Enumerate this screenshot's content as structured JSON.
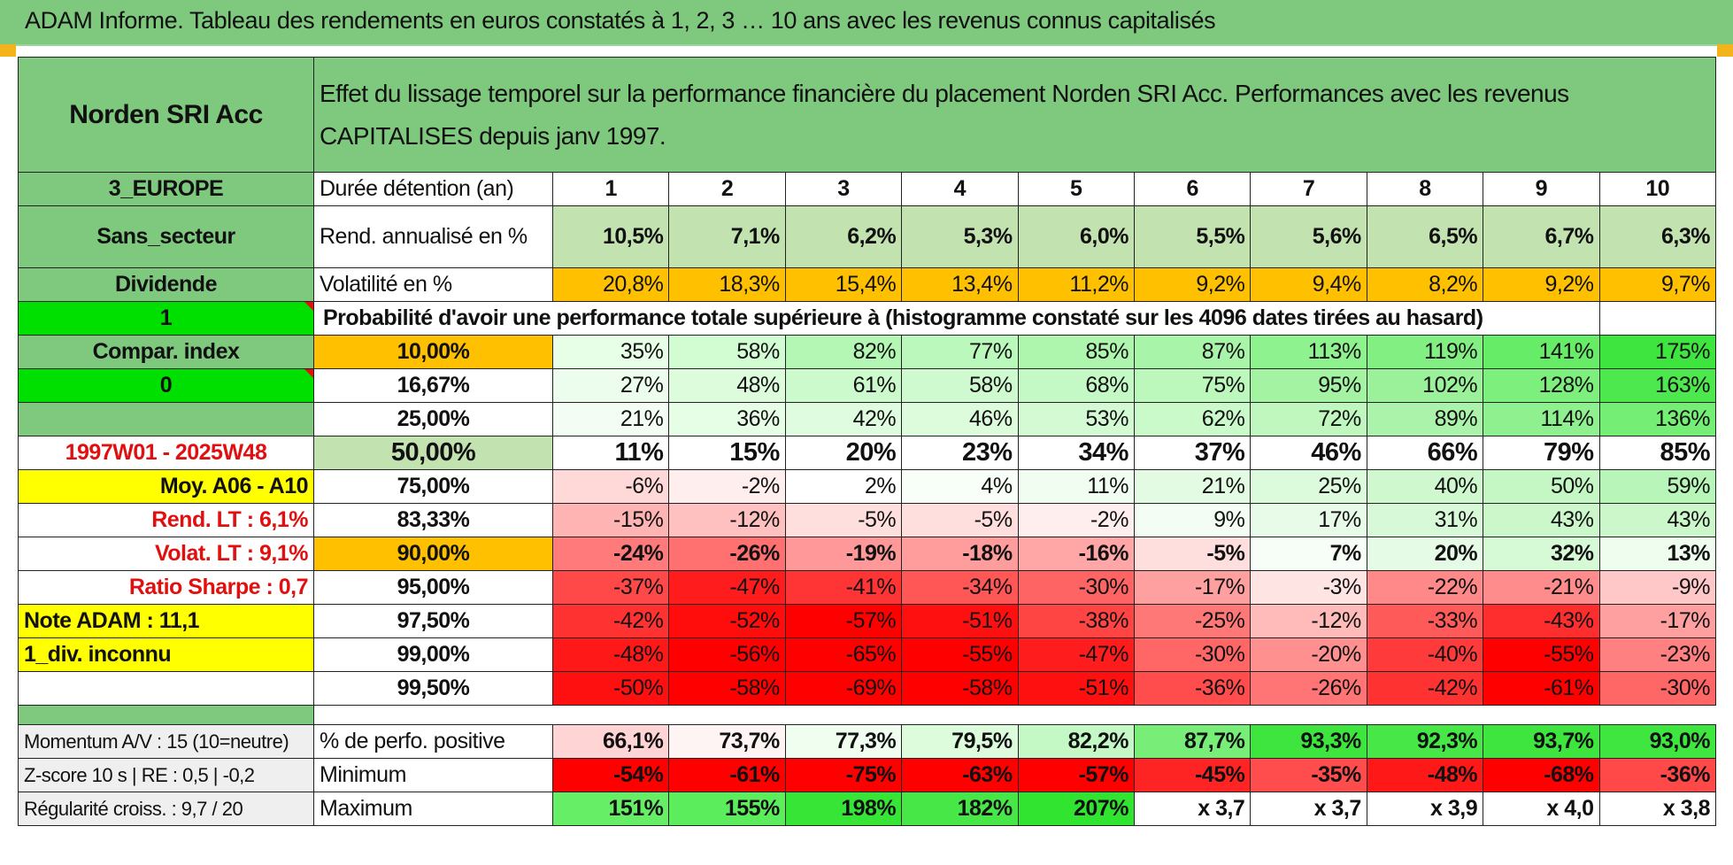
{
  "title": "ADAM Informe. Tableau des rendements en euros constatés à 1, 2, 3 … 10 ans avec les revenus connus capitalisés",
  "fund_name": "Norden SRI Acc",
  "header_text": "Effet du lissage temporel sur la performance financière du placement Norden SRI Acc. Performances avec les revenus CAPITALISES depuis janv 1997.",
  "left_panel": {
    "zone": "3_EUROPE",
    "secteur": "Sans_secteur",
    "dividende": "Dividende",
    "dividende_val": "1",
    "compar_index": "Compar. index",
    "compar_val": "0",
    "period": "1997W01 - 2025W48",
    "moy": "Moy. A06 - A10",
    "rend_lt": "Rend. LT :   6,1%",
    "volat_lt": "Volat. LT :   9,1%",
    "sharpe": "Ratio Sharpe :    0,7",
    "note": "Note ADAM : 11,1",
    "div_inconnu": "1_div. inconnu",
    "momentum": "Momentum A/V : 15 (10=neutre)",
    "zscore": "Z-score 10 s | RE : 0,5 | -0,2",
    "regularite": "Régularité croiss. : 9,7 / 20"
  },
  "labels": {
    "duree": "Durée détention (an)",
    "rend": "Rend. annualisé en %",
    "vol": "Volatilité en %",
    "proba": "Probabilité d'avoir une performance totale supérieure à (histogramme constaté sur les 4096 dates tirées au hasard)",
    "pos": "% de perfo. positive",
    "min": "Minimum",
    "max": "Maximum"
  },
  "years": [
    "1",
    "2",
    "3",
    "4",
    "5",
    "6",
    "7",
    "8",
    "9",
    "10"
  ],
  "rend": [
    "10,5%",
    "7,1%",
    "6,2%",
    "5,3%",
    "6,0%",
    "5,5%",
    "5,6%",
    "6,5%",
    "6,7%",
    "6,3%"
  ],
  "vol": [
    "20,8%",
    "18,3%",
    "15,4%",
    "13,4%",
    "11,2%",
    "9,2%",
    "9,4%",
    "8,2%",
    "9,2%",
    "9,7%"
  ],
  "quantiles": [
    {
      "q": "10,00%",
      "vals": [
        "35%",
        "58%",
        "82%",
        "77%",
        "85%",
        "87%",
        "113%",
        "119%",
        "141%",
        "175%"
      ],
      "colors": [
        "#e6ffe6",
        "#d2fcd2",
        "#b4f7b4",
        "#bbf8bb",
        "#aef5ae",
        "#a8f4a8",
        "#8ef28e",
        "#82ef82",
        "#66ec66",
        "#3ee53e"
      ]
    },
    {
      "q": "16,67%",
      "vals": [
        "27%",
        "48%",
        "61%",
        "58%",
        "68%",
        "75%",
        "95%",
        "102%",
        "128%",
        "163%"
      ],
      "colors": [
        "#edfded",
        "#dcfcdc",
        "#ccfacc",
        "#cffacf",
        "#c4f8c4",
        "#bcf8bc",
        "#a3f3a3",
        "#9af19a",
        "#7def7d",
        "#4de84d"
      ]
    },
    {
      "q": "25,00%",
      "vals": [
        "21%",
        "36%",
        "42%",
        "46%",
        "53%",
        "62%",
        "72%",
        "89%",
        "114%",
        "136%"
      ],
      "colors": [
        "#f3fdf3",
        "#e6fde6",
        "#e0fce0",
        "#dcfcdc",
        "#d4fad4",
        "#caf9ca",
        "#bff7bf",
        "#abf3ab",
        "#8ef08e",
        "#74ee74"
      ]
    },
    {
      "q": "50,00%",
      "vals": [
        "11%",
        "15%",
        "20%",
        "23%",
        "34%",
        "37%",
        "46%",
        "66%",
        "79%",
        "85%"
      ],
      "colors": [
        "#ffffff",
        "#ffffff",
        "#ffffff",
        "#ffffff",
        "#ffffff",
        "#ffffff",
        "#ffffff",
        "#ffffff",
        "#ffffff",
        "#ffffff"
      ]
    },
    {
      "q": "75,00%",
      "vals": [
        "-6%",
        "-2%",
        "2%",
        "4%",
        "11%",
        "21%",
        "25%",
        "40%",
        "50%",
        "59%"
      ],
      "colors": [
        "#ffd8d8",
        "#ffeeee",
        "#ffffff",
        "#f8fff8",
        "#f0fdf0",
        "#e2fbe2",
        "#dcfbdc",
        "#cff8cf",
        "#c4f7c4",
        "#b8f5b8"
      ]
    },
    {
      "q": "83,33%",
      "vals": [
        "-15%",
        "-12%",
        "-5%",
        "-5%",
        "-2%",
        "9%",
        "17%",
        "31%",
        "43%",
        "43%"
      ],
      "colors": [
        "#ffb4b4",
        "#ffc0c0",
        "#ffdede",
        "#ffdede",
        "#ffeeee",
        "#f3fdf3",
        "#e8fbe8",
        "#d8f9d8",
        "#cbf7cb",
        "#cbf7cb"
      ]
    },
    {
      "q": "90,00%",
      "vals": [
        "-24%",
        "-26%",
        "-19%",
        "-18%",
        "-16%",
        "-5%",
        "7%",
        "20%",
        "32%",
        "13%"
      ],
      "colors": [
        "#ff7a7a",
        "#ff7070",
        "#ff9898",
        "#ff9c9c",
        "#ffa6a6",
        "#ffdede",
        "#f7fef7",
        "#e6fbe6",
        "#d6f9d6",
        "#eefdee"
      ]
    },
    {
      "q": "95,00%",
      "vals": [
        "-37%",
        "-47%",
        "-41%",
        "-34%",
        "-30%",
        "-17%",
        "-3%",
        "-22%",
        "-21%",
        "-9%"
      ],
      "colors": [
        "#ff4848",
        "#ff1c1c",
        "#ff3434",
        "#ff5656",
        "#ff6464",
        "#ffa0a0",
        "#ffe4e4",
        "#ff8888",
        "#ff8c8c",
        "#ffc8c8"
      ]
    },
    {
      "q": "97,50%",
      "vals": [
        "-42%",
        "-52%",
        "-57%",
        "-51%",
        "-38%",
        "-25%",
        "-12%",
        "-33%",
        "-43%",
        "-17%"
      ],
      "colors": [
        "#ff3232",
        "#ff0c0c",
        "#ff0000",
        "#ff1010",
        "#ff4444",
        "#ff7878",
        "#ffbaba",
        "#ff5a5a",
        "#ff2e2e",
        "#ffa0a0"
      ]
    },
    {
      "q": "99,00%",
      "vals": [
        "-48%",
        "-56%",
        "-65%",
        "-55%",
        "-47%",
        "-30%",
        "-20%",
        "-40%",
        "-55%",
        "-23%"
      ],
      "colors": [
        "#ff1818",
        "#ff0000",
        "#ff0000",
        "#ff0000",
        "#ff1c1c",
        "#ff6666",
        "#ff9090",
        "#ff3a3a",
        "#ff0000",
        "#ff8080"
      ]
    },
    {
      "q": "99,50%",
      "vals": [
        "-50%",
        "-58%",
        "-69%",
        "-58%",
        "-51%",
        "-36%",
        "-26%",
        "-42%",
        "-61%",
        "-30%"
      ],
      "colors": [
        "#ff1010",
        "#ff0000",
        "#ff0000",
        "#ff0000",
        "#ff1010",
        "#ff4c4c",
        "#ff7474",
        "#ff3232",
        "#ff0000",
        "#ff6666"
      ]
    }
  ],
  "pos": [
    "66,1%",
    "73,7%",
    "77,3%",
    "79,5%",
    "82,2%",
    "87,7%",
    "93,3%",
    "92,3%",
    "93,7%",
    "93,0%"
  ],
  "pos_colors": [
    "#ffd4d4",
    "#fff4f4",
    "#f0fef0",
    "#dcfcdc",
    "#c4f8c4",
    "#78ee78",
    "#3ee53e",
    "#48e748",
    "#3ee53e",
    "#40e640"
  ],
  "min": [
    "-54%",
    "-61%",
    "-75%",
    "-63%",
    "-57%",
    "-45%",
    "-35%",
    "-48%",
    "-68%",
    "-36%"
  ],
  "min_colors": [
    "#ff0000",
    "#ff0000",
    "#ff0000",
    "#ff0000",
    "#ff0000",
    "#ff2424",
    "#ff4c4c",
    "#ff1818",
    "#ff0000",
    "#ff4848"
  ],
  "max": [
    "151%",
    "155%",
    "198%",
    "182%",
    "207%",
    "x 3,7",
    "x 3,7",
    "x 3,9",
    "x 4,0",
    "x 3,8"
  ],
  "max_colors": [
    "#66ee66",
    "#5ced5c",
    "#36e536",
    "#48e748",
    "#30e430",
    "#ffffff",
    "#ffffff",
    "#ffffff",
    "#ffffff",
    "#ffffff"
  ]
}
